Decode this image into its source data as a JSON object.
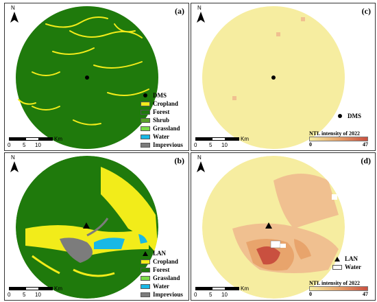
{
  "scale": {
    "ticks": [
      "0",
      "5",
      "10"
    ],
    "unit": "Km"
  },
  "north_label": "N",
  "panels": {
    "a": {
      "label": "(a)",
      "point_name": "DMS",
      "legend": [
        {
          "name": "Cropland",
          "color": "#f2ec1a"
        },
        {
          "name": "Forest",
          "color": "#1f7a0c"
        },
        {
          "name": "Shrub",
          "color": "#5aa12a"
        },
        {
          "name": "Grassland",
          "color": "#7cdc4a"
        },
        {
          "name": "Water",
          "color": "#19b8e6"
        },
        {
          "name": "Imprevious",
          "color": "#7c7c7c"
        }
      ]
    },
    "b": {
      "label": "(b)",
      "point_name": "LAN",
      "legend": [
        {
          "name": "Cropland",
          "color": "#f2ec1a"
        },
        {
          "name": "Forest",
          "color": "#1f7a0c"
        },
        {
          "name": "Grassland",
          "color": "#7cdc4a"
        },
        {
          "name": "Water",
          "color": "#19b8e6"
        },
        {
          "name": "Imprevious",
          "color": "#7c7c7c"
        }
      ]
    },
    "c": {
      "label": "(c)",
      "point_name": "DMS",
      "ntl_title": "NTL intensity of 2022",
      "ntl_min": "0",
      "ntl_max": "47"
    },
    "d": {
      "label": "(d)",
      "point_name": "LAN",
      "water_label": "Water",
      "ntl_title": "NTL intensity of 2022",
      "ntl_min": "0",
      "ntl_max": "47"
    }
  },
  "colors": {
    "forest": "#1f7a0c",
    "cropland": "#f2ec1a",
    "ntl_low": "#f6eda0",
    "ntl_mid": "#e8a46c",
    "ntl_high": "#c9503f"
  }
}
